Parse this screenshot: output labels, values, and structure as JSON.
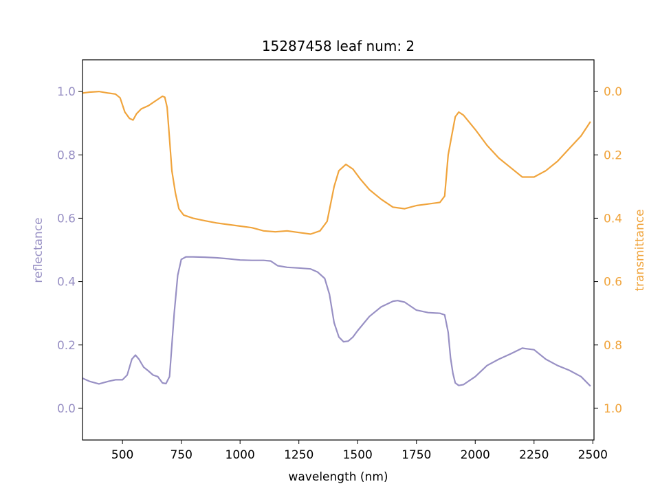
{
  "chart_data": {
    "type": "line",
    "title": "15287458 leaf num: 2",
    "xlabel": "wavelength (nm)",
    "xlim": [
      330,
      2505
    ],
    "xticks": [
      500,
      750,
      1000,
      1250,
      1500,
      1750,
      2000,
      2250,
      2500
    ],
    "grid": false,
    "left_axis": {
      "label": "reflectance",
      "color": "#9890c4",
      "ylim": [
        -0.1,
        1.1
      ],
      "ticks": [
        0.0,
        0.2,
        0.4,
        0.6,
        0.8,
        1.0
      ],
      "tick_labels": [
        "0.0",
        "0.2",
        "0.4",
        "0.6",
        "0.8",
        "1.0"
      ]
    },
    "right_axis": {
      "label": "transmittance",
      "color": "#f0a43c",
      "inverted": true,
      "ylim": [
        1.1,
        -0.1
      ],
      "ticks": [
        0.0,
        0.2,
        0.4,
        0.6,
        0.8,
        1.0
      ],
      "tick_labels": [
        "0.0",
        "0.2",
        "0.4",
        "0.6",
        "0.8",
        "1.0"
      ]
    },
    "series": [
      {
        "axis": "left",
        "color": "#9890c4",
        "points": [
          [
            330,
            0.095
          ],
          [
            360,
            0.085
          ],
          [
            400,
            0.077
          ],
          [
            440,
            0.085
          ],
          [
            470,
            0.09
          ],
          [
            500,
            0.09
          ],
          [
            520,
            0.105
          ],
          [
            540,
            0.155
          ],
          [
            555,
            0.168
          ],
          [
            570,
            0.155
          ],
          [
            590,
            0.13
          ],
          [
            610,
            0.118
          ],
          [
            630,
            0.105
          ],
          [
            650,
            0.1
          ],
          [
            670,
            0.08
          ],
          [
            685,
            0.078
          ],
          [
            700,
            0.1
          ],
          [
            710,
            0.2
          ],
          [
            720,
            0.3
          ],
          [
            735,
            0.42
          ],
          [
            750,
            0.47
          ],
          [
            770,
            0.478
          ],
          [
            800,
            0.478
          ],
          [
            850,
            0.477
          ],
          [
            900,
            0.475
          ],
          [
            950,
            0.472
          ],
          [
            975,
            0.47
          ],
          [
            1000,
            0.468
          ],
          [
            1050,
            0.467
          ],
          [
            1100,
            0.467
          ],
          [
            1130,
            0.465
          ],
          [
            1160,
            0.45
          ],
          [
            1200,
            0.445
          ],
          [
            1250,
            0.443
          ],
          [
            1300,
            0.44
          ],
          [
            1330,
            0.43
          ],
          [
            1360,
            0.41
          ],
          [
            1380,
            0.36
          ],
          [
            1400,
            0.27
          ],
          [
            1420,
            0.225
          ],
          [
            1440,
            0.21
          ],
          [
            1460,
            0.212
          ],
          [
            1480,
            0.225
          ],
          [
            1500,
            0.245
          ],
          [
            1550,
            0.29
          ],
          [
            1600,
            0.32
          ],
          [
            1650,
            0.338
          ],
          [
            1670,
            0.34
          ],
          [
            1700,
            0.335
          ],
          [
            1750,
            0.31
          ],
          [
            1800,
            0.302
          ],
          [
            1850,
            0.3
          ],
          [
            1870,
            0.295
          ],
          [
            1885,
            0.24
          ],
          [
            1895,
            0.16
          ],
          [
            1905,
            0.11
          ],
          [
            1915,
            0.08
          ],
          [
            1930,
            0.072
          ],
          [
            1950,
            0.075
          ],
          [
            2000,
            0.1
          ],
          [
            2050,
            0.135
          ],
          [
            2100,
            0.155
          ],
          [
            2150,
            0.172
          ],
          [
            2200,
            0.19
          ],
          [
            2250,
            0.185
          ],
          [
            2300,
            0.155
          ],
          [
            2350,
            0.135
          ],
          [
            2400,
            0.12
          ],
          [
            2450,
            0.1
          ],
          [
            2490,
            0.07
          ]
        ]
      },
      {
        "axis": "right",
        "color": "#f0a43c",
        "points": [
          [
            330,
            0.005
          ],
          [
            360,
            0.002
          ],
          [
            400,
            0.0
          ],
          [
            440,
            0.005
          ],
          [
            470,
            0.008
          ],
          [
            490,
            0.02
          ],
          [
            510,
            0.065
          ],
          [
            530,
            0.085
          ],
          [
            545,
            0.09
          ],
          [
            560,
            0.07
          ],
          [
            580,
            0.055
          ],
          [
            610,
            0.045
          ],
          [
            640,
            0.03
          ],
          [
            670,
            0.015
          ],
          [
            680,
            0.018
          ],
          [
            690,
            0.05
          ],
          [
            700,
            0.15
          ],
          [
            710,
            0.25
          ],
          [
            725,
            0.32
          ],
          [
            740,
            0.37
          ],
          [
            760,
            0.39
          ],
          [
            800,
            0.4
          ],
          [
            850,
            0.408
          ],
          [
            900,
            0.415
          ],
          [
            950,
            0.42
          ],
          [
            1000,
            0.425
          ],
          [
            1050,
            0.43
          ],
          [
            1100,
            0.44
          ],
          [
            1150,
            0.443
          ],
          [
            1200,
            0.44
          ],
          [
            1250,
            0.445
          ],
          [
            1300,
            0.45
          ],
          [
            1340,
            0.44
          ],
          [
            1370,
            0.41
          ],
          [
            1400,
            0.3
          ],
          [
            1420,
            0.25
          ],
          [
            1450,
            0.23
          ],
          [
            1480,
            0.245
          ],
          [
            1510,
            0.275
          ],
          [
            1550,
            0.31
          ],
          [
            1600,
            0.34
          ],
          [
            1650,
            0.365
          ],
          [
            1700,
            0.37
          ],
          [
            1750,
            0.36
          ],
          [
            1800,
            0.355
          ],
          [
            1850,
            0.35
          ],
          [
            1870,
            0.33
          ],
          [
            1885,
            0.2
          ],
          [
            1900,
            0.14
          ],
          [
            1915,
            0.08
          ],
          [
            1930,
            0.065
          ],
          [
            1950,
            0.075
          ],
          [
            2000,
            0.12
          ],
          [
            2050,
            0.17
          ],
          [
            2100,
            0.21
          ],
          [
            2150,
            0.24
          ],
          [
            2200,
            0.27
          ],
          [
            2250,
            0.27
          ],
          [
            2300,
            0.25
          ],
          [
            2350,
            0.22
          ],
          [
            2400,
            0.18
          ],
          [
            2450,
            0.14
          ],
          [
            2490,
            0.095
          ]
        ]
      }
    ]
  }
}
